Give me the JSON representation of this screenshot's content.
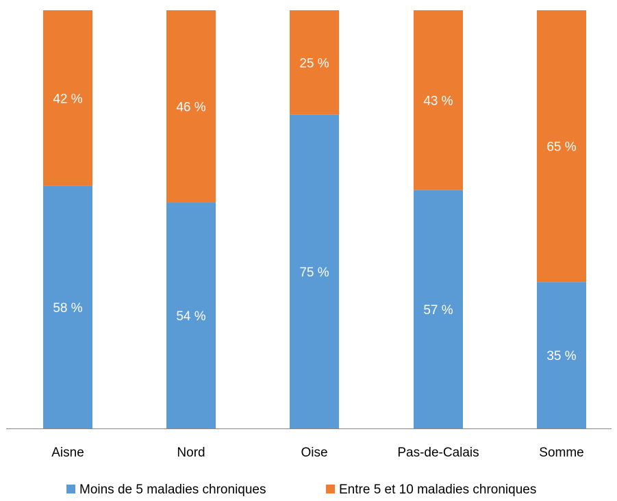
{
  "chart_data": {
    "type": "bar",
    "stacked": true,
    "normalized_100_percent": true,
    "categories": [
      "Aisne",
      "Nord",
      "Oise",
      "Pas-de-Calais",
      "Somme"
    ],
    "series": [
      {
        "name": "Moins de 5 maladies chroniques",
        "color": "#5B9BD5",
        "values": [
          58,
          54,
          75,
          57,
          35
        ],
        "labels": [
          "58 %",
          "54 %",
          "75 %",
          "57 %",
          "35 %"
        ]
      },
      {
        "name": "Entre 5 et 10 maladies chroniques",
        "color": "#ED7D31",
        "values": [
          42,
          46,
          25,
          43,
          65
        ],
        "labels": [
          "42 %",
          "46 %",
          "25 %",
          "43 %",
          "65 %"
        ]
      }
    ],
    "ylim": [
      0,
      100
    ],
    "y_axis_visible": false,
    "grid": false,
    "legend_position": "bottom",
    "data_label_color": "#ffffff",
    "axis_line_color": "#868686",
    "text_color": "#000000"
  }
}
